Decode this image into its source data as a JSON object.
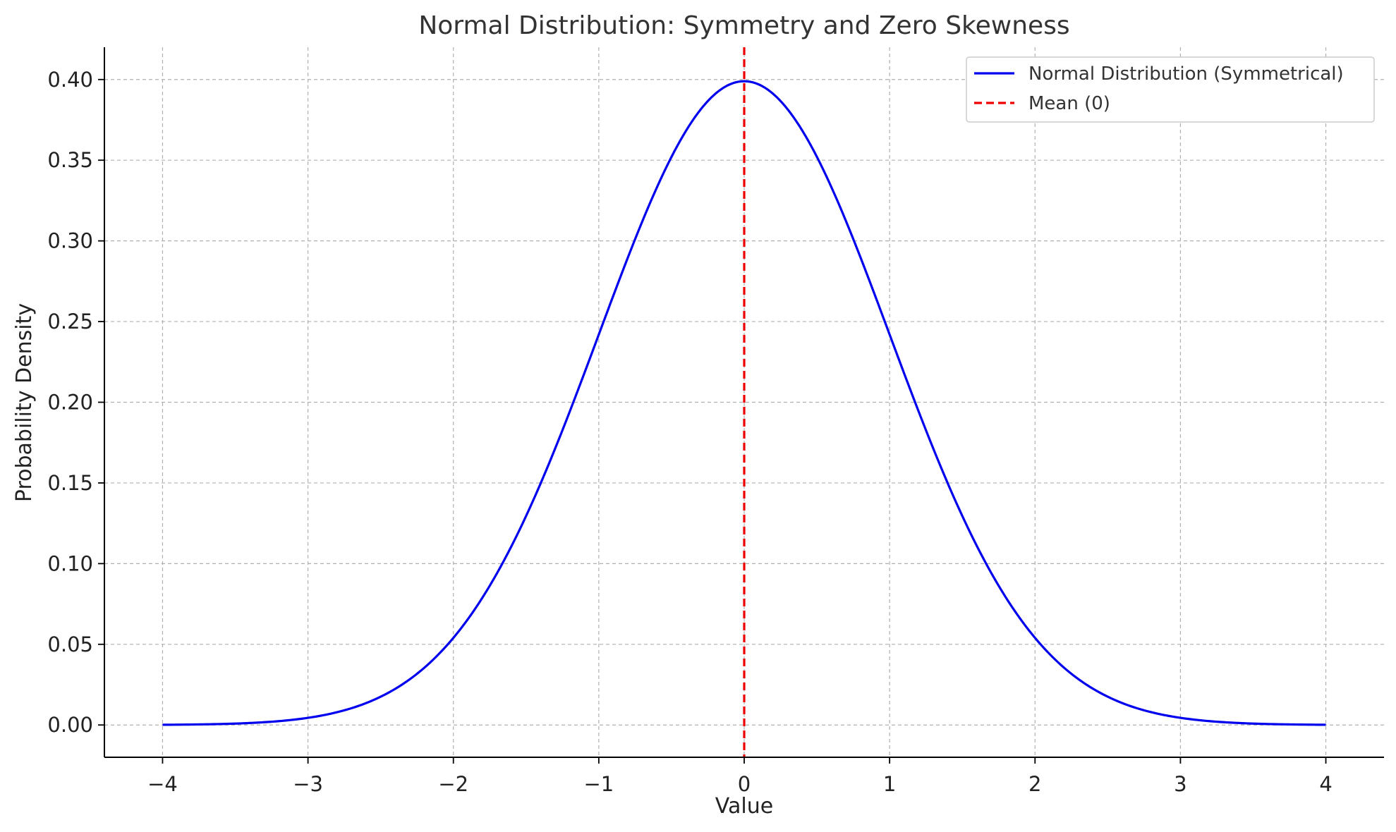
{
  "chart_data": {
    "type": "line",
    "title": "Normal Distribution: Symmetry and Zero Skewness",
    "xlabel": "Value",
    "ylabel": "Probability Density",
    "xlim": [
      -4.4,
      4.4
    ],
    "ylim": [
      -0.02,
      0.42
    ],
    "xticks": [
      -4,
      -3,
      -2,
      -1,
      0,
      1,
      2,
      3,
      4
    ],
    "xtick_labels": [
      "−4",
      "−3",
      "−2",
      "−1",
      "0",
      "1",
      "2",
      "3",
      "4"
    ],
    "yticks": [
      0.0,
      0.05,
      0.1,
      0.15,
      0.2,
      0.25,
      0.3,
      0.35,
      0.4
    ],
    "ytick_labels": [
      "0.00",
      "0.05",
      "0.10",
      "0.15",
      "0.20",
      "0.25",
      "0.30",
      "0.35",
      "0.40"
    ],
    "grid": true,
    "legend_position": "top-right",
    "series": [
      {
        "name": "Normal Distribution (Symmetrical)",
        "color": "#0000ee",
        "style": "solid",
        "x": [
          -4.0,
          -3.5,
          -3.0,
          -2.5,
          -2.25,
          -2.0,
          -1.75,
          -1.5,
          -1.25,
          -1.0,
          -0.75,
          -0.5,
          -0.25,
          0.0,
          0.25,
          0.5,
          0.75,
          1.0,
          1.25,
          1.5,
          1.75,
          2.0,
          2.25,
          2.5,
          3.0,
          3.5,
          4.0
        ],
        "y": [
          0.0001,
          0.0009,
          0.0044,
          0.0175,
          0.0317,
          0.054,
          0.0863,
          0.1295,
          0.1826,
          0.242,
          0.3011,
          0.3521,
          0.3867,
          0.3989,
          0.3867,
          0.3521,
          0.3011,
          0.242,
          0.1826,
          0.1295,
          0.0863,
          0.054,
          0.0317,
          0.0175,
          0.0044,
          0.0009,
          0.0001
        ]
      },
      {
        "name": "Mean (0)",
        "color": "#ee0000",
        "style": "dashed",
        "type": "vline",
        "x": 0
      }
    ]
  }
}
